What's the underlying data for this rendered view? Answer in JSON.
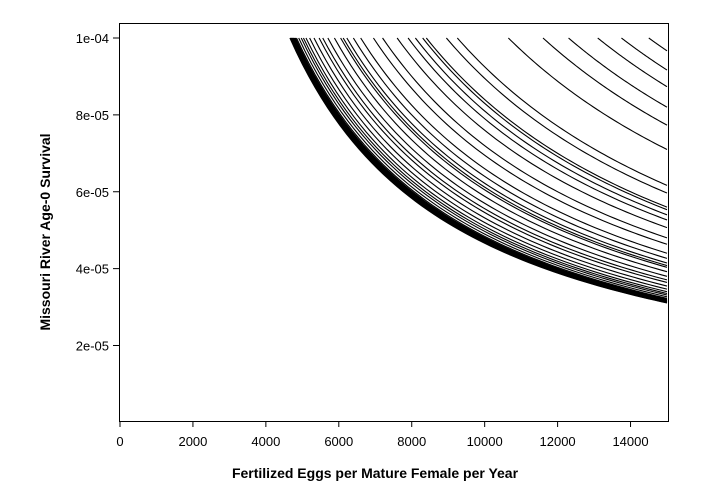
{
  "chart_data": {
    "type": "line",
    "title": "",
    "xlabel": "Fertilized Eggs per Mature Female per Year",
    "ylabel": "Missouri River Age-0 Survival",
    "xlim": [
      0,
      15000
    ],
    "ylim": [
      0,
      0.0001
    ],
    "x_ticks": [
      0,
      2000,
      4000,
      6000,
      8000,
      10000,
      12000,
      14000
    ],
    "x_tick_labels": [
      "0",
      "2000",
      "4000",
      "6000",
      "8000",
      "10000",
      "12000",
      "14000"
    ],
    "y_ticks": [
      2e-05,
      4e-05,
      6e-05,
      8e-05,
      0.0001
    ],
    "y_tick_labels": [
      "2e-05",
      "4e-05",
      "6e-05",
      "8e-05",
      "1e-04"
    ],
    "grid": false,
    "legend": "none",
    "line_color": "#000000",
    "series_description": "family of isoclines y = k / x; each k is the product eggs × survival along one curve",
    "series": [
      {
        "k": 0.466
      },
      {
        "k": 0.467
      },
      {
        "k": 0.468
      },
      {
        "k": 0.469
      },
      {
        "k": 0.47
      },
      {
        "k": 0.471
      },
      {
        "k": 0.472
      },
      {
        "k": 0.473
      },
      {
        "k": 0.474
      },
      {
        "k": 0.475
      },
      {
        "k": 0.476
      },
      {
        "k": 0.477
      },
      {
        "k": 0.479
      },
      {
        "k": 0.481
      },
      {
        "k": 0.484
      },
      {
        "k": 0.49
      },
      {
        "k": 0.497
      },
      {
        "k": 0.503
      },
      {
        "k": 0.51
      },
      {
        "k": 0.52
      },
      {
        "k": 0.532
      },
      {
        "k": 0.546
      },
      {
        "k": 0.556
      },
      {
        "k": 0.57
      },
      {
        "k": 0.588
      },
      {
        "k": 0.605
      },
      {
        "k": 0.612
      },
      {
        "k": 0.622
      },
      {
        "k": 0.64
      },
      {
        "k": 0.66
      },
      {
        "k": 0.695
      },
      {
        "k": 0.72
      },
      {
        "k": 0.76
      },
      {
        "k": 0.79
      },
      {
        "k": 0.81
      },
      {
        "k": 0.83
      },
      {
        "k": 0.84
      },
      {
        "k": 0.895
      },
      {
        "k": 0.925
      },
      {
        "k": 1.065
      },
      {
        "k": 1.16
      },
      {
        "k": 1.23
      },
      {
        "k": 1.31
      },
      {
        "k": 1.375
      },
      {
        "k": 1.45
      }
    ]
  }
}
